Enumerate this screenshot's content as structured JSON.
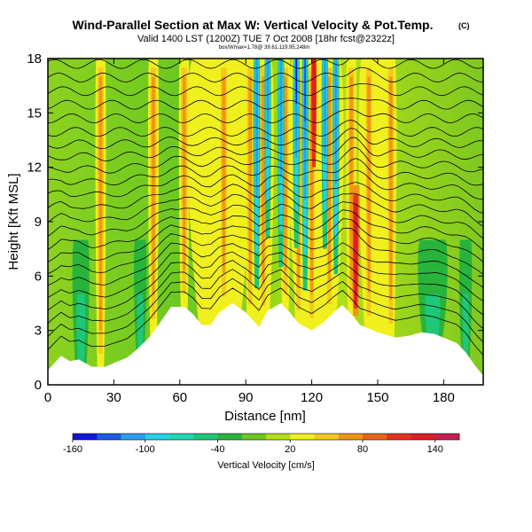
{
  "chart_data": {
    "type": "heatmap",
    "title": "Wind-Parallel Section at Max W: Vertical Velocity & Pot.Temp.",
    "title_mark": "(C)",
    "subtitle": "Valid 1400 LST (1200Z) TUE 7 Oct 2008 [18hr fcst@2322z]",
    "info_line": "box/Wmax=1.78@ 39.61,119.95,248m",
    "xlabel": "Distance [nm]",
    "ylabel": "Height [Kft MSL]",
    "xlim": [
      0,
      198
    ],
    "ylim": [
      0,
      18
    ],
    "x_ticks": [
      0,
      30,
      60,
      90,
      120,
      150,
      180
    ],
    "y_ticks": [
      0,
      3,
      6,
      9,
      12,
      15,
      18
    ],
    "colorbar": {
      "label": "Vertical Velocity [cm/s]",
      "tick_labels": [
        "-160",
        "-100",
        "-40",
        "20",
        "80",
        "140"
      ],
      "colors": [
        "#1414dc",
        "#1a5ae8",
        "#2a9ef0",
        "#26d2e6",
        "#20d8b4",
        "#1ec878",
        "#28b43c",
        "#6ec81e",
        "#b4e018",
        "#f0f01e",
        "#f5c81e",
        "#f09614",
        "#eb6414",
        "#e6321e",
        "#dc1e28",
        "#c81e50"
      ]
    },
    "terrain_top_kft": [
      [
        0,
        0.8
      ],
      [
        6,
        1.6
      ],
      [
        10,
        1.3
      ],
      [
        14,
        1.4
      ],
      [
        20,
        1.0
      ],
      [
        26,
        1.0
      ],
      [
        30,
        1.2
      ],
      [
        36,
        1.5
      ],
      [
        40,
        1.9
      ],
      [
        46,
        2.6
      ],
      [
        52,
        3.6
      ],
      [
        56,
        4.3
      ],
      [
        62,
        4.3
      ],
      [
        66,
        3.9
      ],
      [
        70,
        3.3
      ],
      [
        74,
        3.3
      ],
      [
        78,
        4.0
      ],
      [
        84,
        4.5
      ],
      [
        90,
        4.0
      ],
      [
        96,
        3.2
      ],
      [
        100,
        4.1
      ],
      [
        106,
        4.5
      ],
      [
        110,
        4.0
      ],
      [
        114,
        3.4
      ],
      [
        120,
        3.0
      ],
      [
        126,
        3.5
      ],
      [
        130,
        4.0
      ],
      [
        134,
        4.4
      ],
      [
        138,
        3.9
      ],
      [
        142,
        3.3
      ],
      [
        150,
        2.9
      ],
      [
        158,
        2.6
      ],
      [
        164,
        2.7
      ],
      [
        170,
        2.9
      ],
      [
        176,
        2.8
      ],
      [
        182,
        2.5
      ],
      [
        186,
        2.3
      ],
      [
        190,
        1.8
      ],
      [
        194,
        1.1
      ],
      [
        198,
        0.5
      ]
    ],
    "updraft_cores_x_nm": [
      24,
      48,
      62,
      80,
      92,
      98,
      108,
      114,
      120,
      128,
      138,
      146,
      156
    ],
    "strongest_updraft_x_nm": 140,
    "downdraft_cores_x_nm": [
      95,
      100,
      106,
      113,
      117,
      126,
      131
    ]
  }
}
